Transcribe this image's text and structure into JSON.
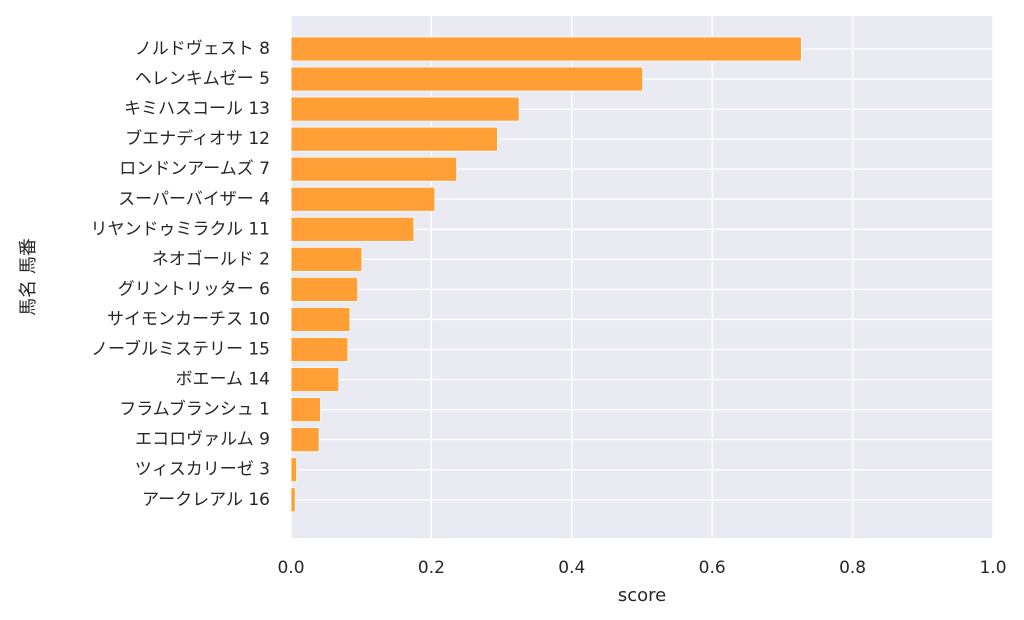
{
  "chart_data": {
    "type": "bar",
    "orientation": "horizontal",
    "categories": [
      "ノルドヴェスト 8",
      "ヘレンキムゼー 5",
      "キミハスコール 13",
      "ブエナディオサ 12",
      "ロンドンアームズ 7",
      "スーパーバイザー 4",
      "リヤンドゥミラクル 11",
      "ネオゴールド 2",
      "グリントリッター 6",
      "サイモンカーチス 10",
      "ノーブルミステリー 15",
      "ボエーム 14",
      "フラムブランシュ 1",
      "エコロヴァルム 9",
      "ツィスカリーゼ 3",
      "アークレアル 16"
    ],
    "values": [
      0.727,
      0.501,
      0.325,
      0.294,
      0.236,
      0.205,
      0.175,
      0.101,
      0.095,
      0.084,
      0.081,
      0.068,
      0.042,
      0.04,
      0.008,
      0.006
    ],
    "xlabel": "score",
    "ylabel": "馬名 馬番",
    "xlim": [
      0,
      1.0
    ],
    "xticks": [
      "0.0",
      "0.2",
      "0.4",
      "0.6",
      "0.8",
      "1.0"
    ],
    "grid": true,
    "colors": {
      "bar": "#ff9f35",
      "bar_edge": "#ffffff",
      "plot_background": "#eaeaf2",
      "grid": "#ffffff",
      "text": "#262626"
    }
  }
}
